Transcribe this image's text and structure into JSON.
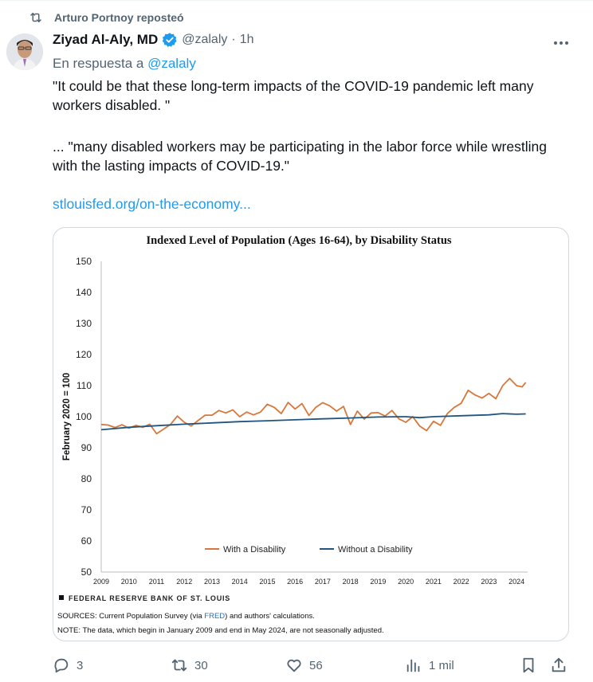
{
  "repost": {
    "text": "Arturo Portnoy reposteó"
  },
  "author": {
    "name": "Ziyad Al-Aly, MD",
    "handle": "@zalaly",
    "separator": "·",
    "time": "1h"
  },
  "reply_to": {
    "prefix": "En respuesta a",
    "mention": "@zalaly"
  },
  "tweet": {
    "paragraph_1": "\"It could be that these long-term impacts of the COVID-19 pandemic left many workers disabled. \"",
    "paragraph_2": "... \"many disabled workers may be participating in the labor force while wrestling with the lasting impacts of COVID-19.\"",
    "link": "stlouisfed.org/on-the-economy..."
  },
  "media": {
    "source_line": "FEDERAL RESERVE BANK OF ST. LOUIS",
    "sources_prefix": "SOURCES: Current Population Survey (via ",
    "sources_link": "FRED",
    "sources_suffix": ") and authors' calculations.",
    "note": "NOTE: The data, which begin in January 2009 and end in May 2024, are not seasonally adjusted."
  },
  "chart_data": {
    "type": "line",
    "title": "Indexed Level of Population (Ages 16-64), by Disability Status",
    "xlabel": "",
    "ylabel": "February 2020 = 100",
    "ylim": [
      50,
      150
    ],
    "yticks": [
      "50",
      "60",
      "70",
      "80",
      "90",
      "100",
      "110",
      "120",
      "130",
      "140",
      "150"
    ],
    "xticks": [
      "2009",
      "2010",
      "2011",
      "2012",
      "2013",
      "2014",
      "2015",
      "2016",
      "2017",
      "2018",
      "2019",
      "2020",
      "2021",
      "2022",
      "2023",
      "2024"
    ],
    "grid": false,
    "legend": "bottom-center",
    "series": [
      {
        "name": "With a Disability",
        "color": "#d9773a",
        "points": [
          [
            2009.0,
            97.5
          ],
          [
            2009.25,
            97.3
          ],
          [
            2009.5,
            96.5
          ],
          [
            2009.75,
            97.4
          ],
          [
            2010.0,
            96.3
          ],
          [
            2010.25,
            97.2
          ],
          [
            2010.5,
            96.6
          ],
          [
            2010.75,
            97.6
          ],
          [
            2011.0,
            94.5
          ],
          [
            2011.25,
            96.0
          ],
          [
            2011.5,
            97.5
          ],
          [
            2011.75,
            100.2
          ],
          [
            2012.0,
            98.2
          ],
          [
            2012.25,
            97.0
          ],
          [
            2012.5,
            98.8
          ],
          [
            2012.75,
            100.5
          ],
          [
            2013.0,
            100.5
          ],
          [
            2013.25,
            102.0
          ],
          [
            2013.5,
            101.2
          ],
          [
            2013.75,
            102.2
          ],
          [
            2014.0,
            100.0
          ],
          [
            2014.25,
            101.5
          ],
          [
            2014.5,
            100.6
          ],
          [
            2014.75,
            101.5
          ],
          [
            2015.0,
            104.0
          ],
          [
            2015.25,
            103.0
          ],
          [
            2015.5,
            101.0
          ],
          [
            2015.75,
            104.6
          ],
          [
            2016.0,
            102.5
          ],
          [
            2016.25,
            104.2
          ],
          [
            2016.5,
            100.4
          ],
          [
            2016.75,
            103.0
          ],
          [
            2017.0,
            104.5
          ],
          [
            2017.25,
            103.5
          ],
          [
            2017.5,
            101.8
          ],
          [
            2017.75,
            103.3
          ],
          [
            2018.0,
            97.5
          ],
          [
            2018.25,
            101.8
          ],
          [
            2018.5,
            99.2
          ],
          [
            2018.75,
            101.2
          ],
          [
            2019.0,
            101.3
          ],
          [
            2019.25,
            100.2
          ],
          [
            2019.5,
            102.0
          ],
          [
            2019.75,
            99.3
          ],
          [
            2020.0,
            98.2
          ],
          [
            2020.25,
            100.0
          ],
          [
            2020.5,
            97.0
          ],
          [
            2020.75,
            95.5
          ],
          [
            2021.0,
            98.5
          ],
          [
            2021.25,
            97.2
          ],
          [
            2021.5,
            101.0
          ],
          [
            2021.75,
            103.0
          ],
          [
            2022.0,
            104.3
          ],
          [
            2022.25,
            108.5
          ],
          [
            2022.5,
            107.0
          ],
          [
            2022.75,
            106.0
          ],
          [
            2023.0,
            107.5
          ],
          [
            2023.25,
            105.8
          ],
          [
            2023.5,
            110.0
          ],
          [
            2023.75,
            112.3
          ],
          [
            2024.0,
            110.0
          ],
          [
            2024.2,
            109.6
          ],
          [
            2024.33,
            111.0
          ]
        ]
      },
      {
        "name": "Without a Disability",
        "color": "#1f5580",
        "points": [
          [
            2009.0,
            95.8
          ],
          [
            2010.0,
            96.6
          ],
          [
            2011.0,
            97.1
          ],
          [
            2012.0,
            97.6
          ],
          [
            2013.0,
            98.0
          ],
          [
            2014.0,
            98.4
          ],
          [
            2015.0,
            98.7
          ],
          [
            2016.0,
            99.0
          ],
          [
            2017.0,
            99.3
          ],
          [
            2018.0,
            99.6
          ],
          [
            2019.0,
            99.9
          ],
          [
            2020.0,
            100.0
          ],
          [
            2020.5,
            99.7
          ],
          [
            2021.0,
            100.0
          ],
          [
            2022.0,
            100.3
          ],
          [
            2023.0,
            100.6
          ],
          [
            2023.5,
            101.0
          ],
          [
            2024.0,
            100.8
          ],
          [
            2024.33,
            100.9
          ]
        ]
      }
    ]
  },
  "actions": {
    "replies": "3",
    "reposts": "30",
    "likes": "56",
    "views": "1 mil"
  }
}
